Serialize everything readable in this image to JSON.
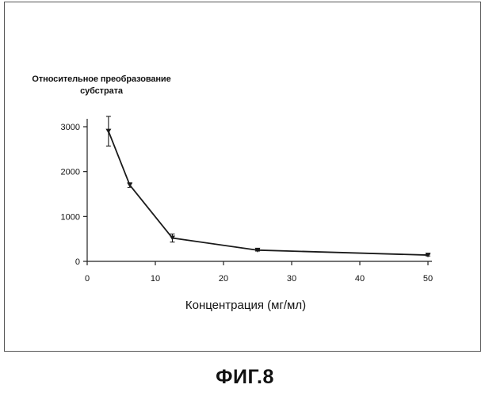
{
  "figure": {
    "caption": "ФИГ.8"
  },
  "chart_data": {
    "type": "line",
    "title": "",
    "ylabel_lines": [
      "Относительное преобразование",
      "субстрата"
    ],
    "xlabel": "Концентрация (мг/мл)",
    "xlim": [
      0,
      50
    ],
    "ylim": [
      0,
      3000
    ],
    "xticks": [
      0,
      10,
      20,
      30,
      40,
      50
    ],
    "yticks": [
      0,
      1000,
      2000,
      3000
    ],
    "grid": false,
    "legend": "none",
    "series": [
      {
        "x": [
          3.125,
          6.25,
          12.5,
          25,
          50
        ],
        "y": [
          2900,
          1700,
          520,
          250,
          140
        ],
        "error": [
          330,
          50,
          90,
          20,
          20
        ]
      }
    ],
    "line_color": "#1a1a1a"
  }
}
